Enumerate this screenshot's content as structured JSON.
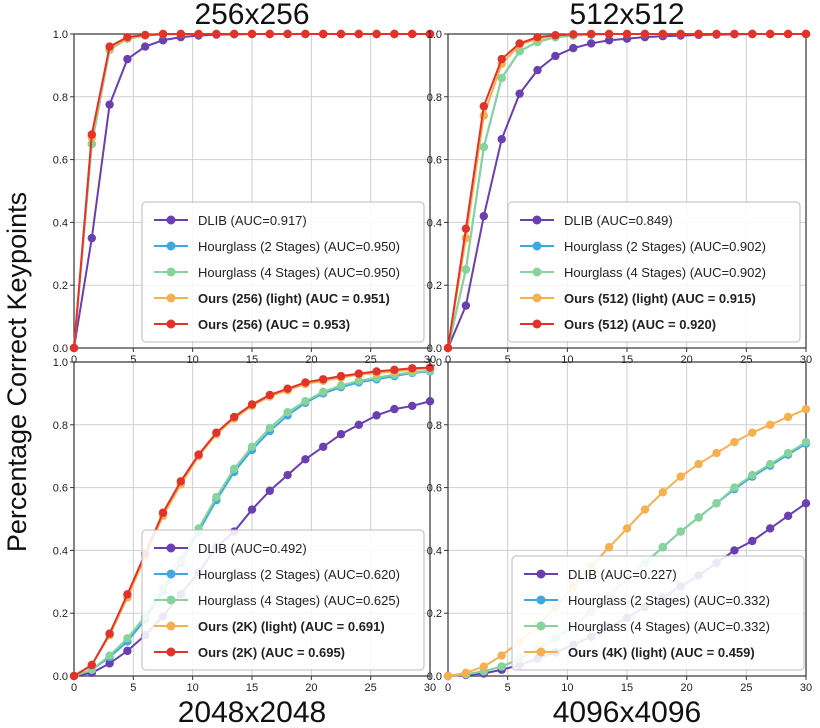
{
  "ylabel": "Percentage Correct Keypoints",
  "colors": {
    "dlib": "#6A3FB0",
    "hg2": "#3FA8E0",
    "hg4": "#86D39C",
    "light": "#F7B04F",
    "ours": "#E2332A",
    "grid": "#cfcfcf",
    "axis": "#333333"
  },
  "chart_data": [
    {
      "type": "line",
      "title": "256x256",
      "title_position": "top",
      "xlim": [
        0,
        30
      ],
      "ylim": [
        0,
        1.0
      ],
      "xticks": [
        "0",
        "5",
        "10",
        "15",
        "20",
        "25",
        "30"
      ],
      "yticks": [
        "0.0",
        "0.2",
        "0.4",
        "0.6",
        "0.8",
        "1.0"
      ],
      "legend_position": "lower-right",
      "x": [
        0,
        1.5,
        3,
        4.5,
        6,
        7.5,
        9,
        10.5,
        12,
        13.5,
        15,
        16.5,
        18,
        19.5,
        21,
        22.5,
        24,
        25.5,
        27,
        28.5,
        30
      ],
      "series": [
        {
          "name": "DLIB (AUC=0.917)",
          "color": "dlib",
          "bold": false,
          "values": [
            0,
            0.35,
            0.775,
            0.92,
            0.96,
            0.98,
            0.99,
            0.995,
            0.998,
            0.999,
            1,
            1,
            1,
            1,
            1,
            1,
            1,
            1,
            1,
            1,
            1
          ]
        },
        {
          "name": "Hourglass (2 Stages) (AUC=0.950)",
          "color": "hg2",
          "bold": false,
          "values": [
            0,
            0.65,
            0.95,
            0.985,
            0.995,
            0.999,
            1,
            1,
            1,
            1,
            1,
            1,
            1,
            1,
            1,
            1,
            1,
            1,
            1,
            1,
            1
          ]
        },
        {
          "name": "Hourglass (4 Stages) (AUC=0.950)",
          "color": "hg4",
          "bold": false,
          "values": [
            0,
            0.65,
            0.95,
            0.985,
            0.995,
            0.999,
            1,
            1,
            1,
            1,
            1,
            1,
            1,
            1,
            1,
            1,
            1,
            1,
            1,
            1,
            1
          ]
        },
        {
          "name": "Ours (256) (light) (AUC = 0.951)",
          "color": "light",
          "bold": true,
          "values": [
            0,
            0.67,
            0.955,
            0.987,
            0.996,
            1,
            1,
            1,
            1,
            1,
            1,
            1,
            1,
            1,
            1,
            1,
            1,
            1,
            1,
            1,
            1
          ]
        },
        {
          "name": "Ours (256) (AUC = 0.953)",
          "color": "ours",
          "bold": true,
          "values": [
            0,
            0.68,
            0.96,
            0.99,
            0.997,
            1,
            1,
            1,
            1,
            1,
            1,
            1,
            1,
            1,
            1,
            1,
            1,
            1,
            1,
            1,
            1
          ]
        }
      ]
    },
    {
      "type": "line",
      "title": "512x512",
      "title_position": "top",
      "xlim": [
        0,
        30
      ],
      "ylim": [
        0,
        1.0
      ],
      "xticks": [
        "0",
        "5",
        "10",
        "15",
        "20",
        "25",
        "30"
      ],
      "yticks": [
        "0.0",
        "0.2",
        "0.4",
        "0.6",
        "0.8",
        "1.0"
      ],
      "legend_position": "lower-right",
      "x": [
        0,
        1.5,
        3,
        4.5,
        6,
        7.5,
        9,
        10.5,
        12,
        13.5,
        15,
        16.5,
        18,
        19.5,
        21,
        22.5,
        24,
        25.5,
        27,
        28.5,
        30
      ],
      "series": [
        {
          "name": "DLIB (AUC=0.849)",
          "color": "dlib",
          "bold": false,
          "values": [
            0,
            0.135,
            0.42,
            0.665,
            0.81,
            0.885,
            0.93,
            0.955,
            0.97,
            0.98,
            0.985,
            0.99,
            0.993,
            0.995,
            0.997,
            0.998,
            0.999,
            1,
            1,
            1,
            1
          ]
        },
        {
          "name": "Hourglass (2 Stages) (AUC=0.902)",
          "color": "hg2",
          "bold": false,
          "values": [
            0,
            0.25,
            0.64,
            0.86,
            0.945,
            0.975,
            0.99,
            0.995,
            0.998,
            1,
            1,
            1,
            1,
            1,
            1,
            1,
            1,
            1,
            1,
            1,
            1
          ]
        },
        {
          "name": "Hourglass (4 Stages) (AUC=0.902)",
          "color": "hg4",
          "bold": false,
          "values": [
            0,
            0.25,
            0.64,
            0.86,
            0.945,
            0.975,
            0.99,
            0.995,
            0.998,
            1,
            1,
            1,
            1,
            1,
            1,
            1,
            1,
            1,
            1,
            1,
            1
          ]
        },
        {
          "name": "Ours (512) (light) (AUC = 0.915)",
          "color": "light",
          "bold": true,
          "values": [
            0,
            0.35,
            0.74,
            0.905,
            0.965,
            0.985,
            0.995,
            0.998,
            1,
            1,
            1,
            1,
            1,
            1,
            1,
            1,
            1,
            1,
            1,
            1,
            1
          ]
        },
        {
          "name": "Ours (512) (AUC = 0.920)",
          "color": "ours",
          "bold": true,
          "values": [
            0,
            0.38,
            0.77,
            0.92,
            0.97,
            0.99,
            0.996,
            0.999,
            1,
            1,
            1,
            1,
            1,
            1,
            1,
            1,
            1,
            1,
            1,
            1,
            1
          ]
        }
      ]
    },
    {
      "type": "line",
      "title": "2048x2048",
      "title_position": "bottom",
      "xlim": [
        0,
        30
      ],
      "ylim": [
        0,
        1.0
      ],
      "xticks": [
        "0",
        "5",
        "10",
        "15",
        "20",
        "25",
        "30"
      ],
      "yticks": [
        "0.0",
        "0.2",
        "0.4",
        "0.6",
        "0.8",
        "1.0"
      ],
      "legend_position": "lower-right",
      "x": [
        0,
        1.5,
        3,
        4.5,
        6,
        7.5,
        9,
        10.5,
        12,
        13.5,
        15,
        16.5,
        18,
        19.5,
        21,
        22.5,
        24,
        25.5,
        27,
        28.5,
        30
      ],
      "series": [
        {
          "name": "DLIB (AUC=0.492)",
          "color": "dlib",
          "bold": false,
          "values": [
            0,
            0.01,
            0.04,
            0.08,
            0.13,
            0.19,
            0.26,
            0.33,
            0.41,
            0.46,
            0.53,
            0.59,
            0.64,
            0.69,
            0.73,
            0.77,
            0.8,
            0.83,
            0.85,
            0.86,
            0.875
          ]
        },
        {
          "name": "Hourglass (2 Stages) (AUC=0.620)",
          "color": "hg2",
          "bold": false,
          "values": [
            0,
            0.02,
            0.06,
            0.11,
            0.18,
            0.27,
            0.36,
            0.46,
            0.56,
            0.65,
            0.72,
            0.78,
            0.83,
            0.87,
            0.9,
            0.92,
            0.935,
            0.945,
            0.955,
            0.965,
            0.97
          ]
        },
        {
          "name": "Hourglass (4 Stages) (AUC=0.625)",
          "color": "hg4",
          "bold": false,
          "values": [
            0,
            0.02,
            0.065,
            0.12,
            0.19,
            0.28,
            0.37,
            0.47,
            0.57,
            0.66,
            0.73,
            0.79,
            0.84,
            0.875,
            0.905,
            0.925,
            0.94,
            0.95,
            0.96,
            0.967,
            0.972
          ]
        },
        {
          "name": "Ours (2K) (light) (AUC = 0.691)",
          "color": "light",
          "bold": true,
          "values": [
            0,
            0.035,
            0.13,
            0.25,
            0.38,
            0.51,
            0.61,
            0.7,
            0.77,
            0.82,
            0.86,
            0.89,
            0.91,
            0.93,
            0.94,
            0.95,
            0.96,
            0.965,
            0.97,
            0.975,
            0.98
          ]
        },
        {
          "name": "Ours (2K) (AUC = 0.695)",
          "color": "ours",
          "bold": true,
          "values": [
            0,
            0.035,
            0.135,
            0.26,
            0.39,
            0.52,
            0.62,
            0.705,
            0.775,
            0.825,
            0.865,
            0.895,
            0.915,
            0.935,
            0.945,
            0.955,
            0.963,
            0.97,
            0.975,
            0.98,
            0.982
          ]
        }
      ]
    },
    {
      "type": "line",
      "title": "4096x4096",
      "title_position": "bottom",
      "xlim": [
        0,
        30
      ],
      "ylim": [
        0,
        1.0
      ],
      "xticks": [
        "0",
        "5",
        "10",
        "15",
        "20",
        "25",
        "30"
      ],
      "yticks": [
        "0.0",
        "0.2",
        "0.4",
        "0.6",
        "0.8",
        "1.0"
      ],
      "legend_position": "lower-left",
      "x": [
        0,
        1.5,
        3,
        4.5,
        6,
        7.5,
        9,
        10.5,
        12,
        13.5,
        15,
        16.5,
        18,
        19.5,
        21,
        22.5,
        24,
        25.5,
        27,
        28.5,
        30
      ],
      "series": [
        {
          "name": "DLIB (AUC=0.227)",
          "color": "dlib",
          "bold": false,
          "values": [
            0,
            0.003,
            0.008,
            0.02,
            0.035,
            0.055,
            0.075,
            0.1,
            0.125,
            0.155,
            0.185,
            0.22,
            0.25,
            0.285,
            0.32,
            0.36,
            0.4,
            0.43,
            0.47,
            0.51,
            0.55
          ]
        },
        {
          "name": "Hourglass (2 Stages) (AUC=0.332)",
          "color": "hg2",
          "bold": false,
          "values": [
            0,
            0.005,
            0.015,
            0.03,
            0.055,
            0.085,
            0.12,
            0.16,
            0.205,
            0.255,
            0.31,
            0.36,
            0.41,
            0.46,
            0.505,
            0.55,
            0.595,
            0.635,
            0.67,
            0.705,
            0.74
          ]
        },
        {
          "name": "Hourglass (4 Stages) (AUC=0.332)",
          "color": "hg4",
          "bold": false,
          "values": [
            0,
            0.005,
            0.015,
            0.03,
            0.055,
            0.085,
            0.12,
            0.16,
            0.205,
            0.255,
            0.31,
            0.36,
            0.41,
            0.46,
            0.505,
            0.55,
            0.6,
            0.64,
            0.675,
            0.71,
            0.745
          ]
        },
        {
          "name": "Ours (4K) (light) (AUC = 0.459)",
          "color": "light",
          "bold": true,
          "values": [
            0,
            0.01,
            0.03,
            0.065,
            0.11,
            0.16,
            0.22,
            0.285,
            0.35,
            0.41,
            0.47,
            0.53,
            0.585,
            0.635,
            0.675,
            0.71,
            0.745,
            0.775,
            0.8,
            0.825,
            0.85
          ]
        }
      ]
    }
  ]
}
